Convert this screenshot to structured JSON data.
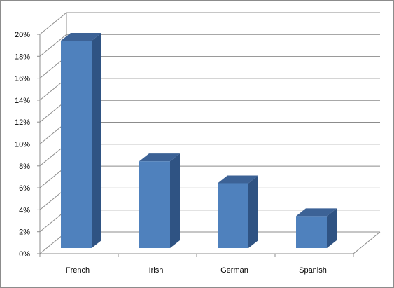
{
  "chart_data": {
    "type": "bar",
    "title": "",
    "xlabel": "",
    "ylabel": "",
    "categories": [
      "French",
      "Irish",
      "German",
      "Spanish"
    ],
    "values": [
      20,
      9,
      7,
      4
    ],
    "ylim": [
      0,
      20
    ],
    "yticks": [
      "0%",
      "2%",
      "4%",
      "6%",
      "8%",
      "10%",
      "12%",
      "14%",
      "16%",
      "18%",
      "20%"
    ],
    "grid": true,
    "legend": "none",
    "three_d": true,
    "colors": {
      "bar_front": "#4F81BD",
      "bar_side": "#2F5383",
      "bar_top": "#3C6296",
      "gridline": "#8c8c8c",
      "frame": "#8c8c8c"
    }
  }
}
